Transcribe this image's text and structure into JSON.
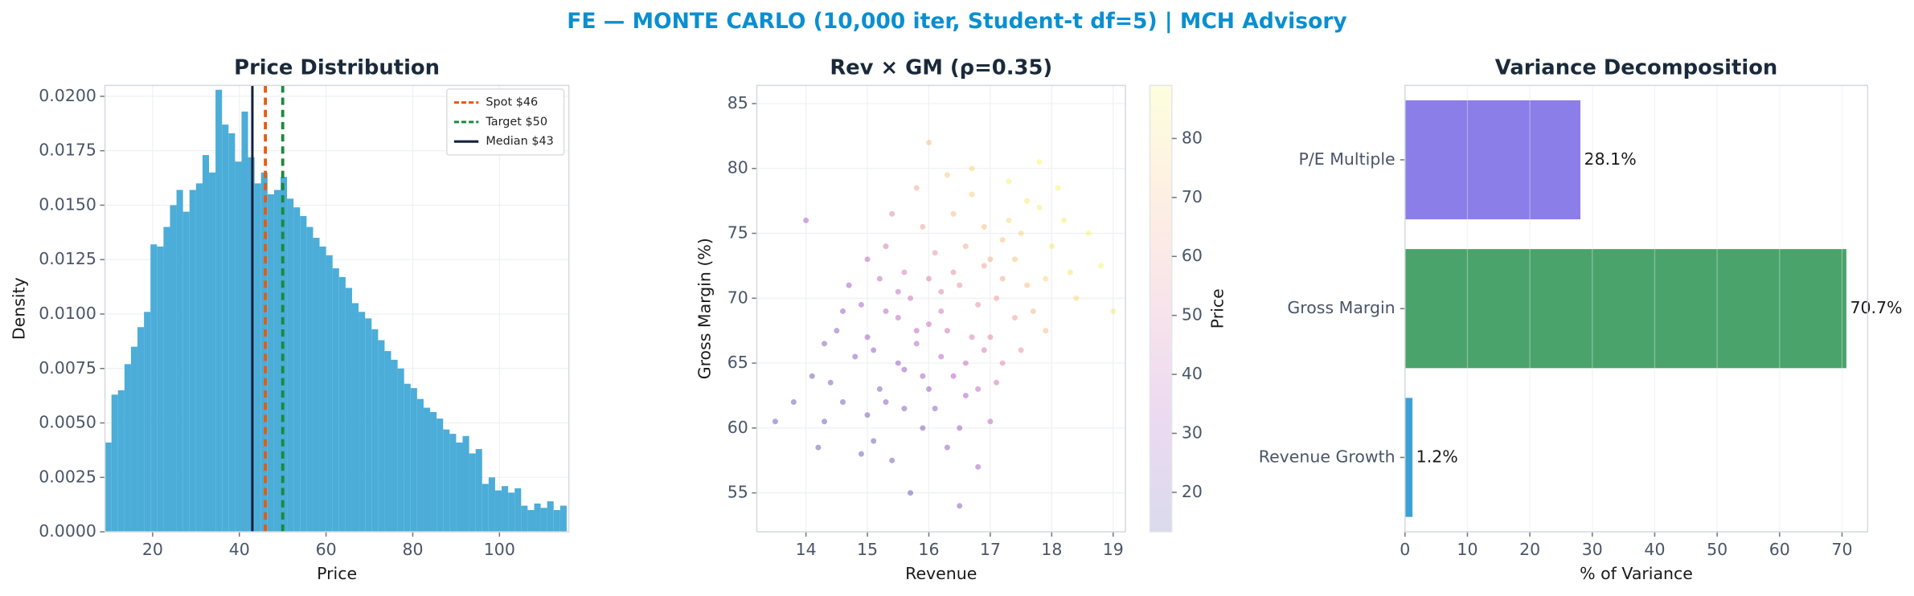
{
  "figure_title": "FE — MONTE CARLO (10,000 iter, Student-t df=5) | MCH Advisory",
  "chart_data": [
    {
      "type": "histogram",
      "title": "Price Distribution",
      "xlabel": "Price",
      "ylabel": "Density",
      "color": "#4badd8",
      "bins": [
        9,
        10.5,
        12,
        13.5,
        15,
        16.5,
        18,
        19.5,
        21,
        22.5,
        24,
        25.5,
        27,
        28.5,
        30,
        31.5,
        33,
        34.5,
        36,
        37.5,
        39,
        40.5,
        42,
        43.5,
        45,
        46.5,
        48,
        49.5,
        51,
        52.5,
        54,
        55.5,
        57,
        58.5,
        60,
        61.5,
        63,
        64.5,
        66,
        67.5,
        69,
        70.5,
        72,
        73.5,
        75,
        76.5,
        78,
        79.5,
        81,
        82.5,
        84,
        85.5,
        87,
        88.5,
        90,
        91.5,
        93,
        94.5,
        96,
        97.5,
        99,
        100.5,
        102,
        103.5,
        105,
        106.5,
        108,
        109.5,
        111,
        112.5,
        114,
        115.5
      ],
      "values": [
        0.0041,
        0.0063,
        0.0065,
        0.0077,
        0.0085,
        0.0094,
        0.0101,
        0.0132,
        0.0131,
        0.014,
        0.015,
        0.0157,
        0.0147,
        0.0157,
        0.016,
        0.0173,
        0.0165,
        0.0203,
        0.0187,
        0.0183,
        0.017,
        0.0193,
        0.0172,
        0.016,
        0.0165,
        0.0155,
        0.0157,
        0.0163,
        0.0153,
        0.0149,
        0.0145,
        0.014,
        0.0135,
        0.0131,
        0.0127,
        0.0121,
        0.0117,
        0.0112,
        0.0105,
        0.0101,
        0.0098,
        0.0093,
        0.0088,
        0.0083,
        0.0079,
        0.0075,
        0.0068,
        0.0066,
        0.0061,
        0.0057,
        0.0055,
        0.0052,
        0.0047,
        0.0045,
        0.0041,
        0.0044,
        0.0036,
        0.0038,
        0.0022,
        0.0025,
        0.0019,
        0.0021,
        0.0018,
        0.002,
        0.0012,
        0.001,
        0.0013,
        0.0011,
        0.0014,
        0.001,
        0.0012
      ],
      "xlim": [
        9,
        116
      ],
      "ylim": [
        0,
        0.0205
      ],
      "xticks": [
        20,
        40,
        60,
        80,
        100
      ],
      "yticks": [
        {
          "value": 0,
          "label": "0.0000"
        },
        {
          "value": 0.0025,
          "label": "0.0025"
        },
        {
          "value": 0.005,
          "label": "0.0050"
        },
        {
          "value": 0.0075,
          "label": "0.0075"
        },
        {
          "value": 0.01,
          "label": "0.0100"
        },
        {
          "value": 0.0125,
          "label": "0.0125"
        },
        {
          "value": 0.015,
          "label": "0.0150"
        },
        {
          "value": 0.0175,
          "label": "0.0175"
        },
        {
          "value": 0.02,
          "label": "0.0200"
        }
      ],
      "grid": true,
      "legend": "upper right",
      "lines": [
        {
          "name": "Spot $46",
          "value": 46,
          "color": "#e8590c",
          "style": "dashed"
        },
        {
          "name": "Target $50",
          "value": 50,
          "color": "#1a8a3a",
          "style": "dashed"
        },
        {
          "name": "Median $43",
          "value": 43,
          "color": "#14213d",
          "style": "solid"
        }
      ]
    },
    {
      "type": "scatter",
      "title": "Rev × GM (ρ=0.35)",
      "xlabel": "Revenue",
      "ylabel": "Gross Margin (%)",
      "colormap": "plasma",
      "alpha": 0.35,
      "x": [
        16.0,
        15.5,
        16.5,
        17.0,
        15.2,
        16.8,
        15.8,
        17.5,
        14.6,
        16.2,
        15.0,
        17.2,
        16.4,
        15.6,
        18.0,
        14.3,
        16.9,
        15.3,
        17.8,
        16.1,
        15.9,
        14.8,
        17.4,
        16.6,
        15.1,
        16.3,
        18.3,
        14.1,
        17.1,
        15.7,
        16.7,
        15.4,
        17.6,
        14.9,
        16.0,
        17.3,
        15.5,
        16.5,
        18.6,
        13.8,
        16.9,
        15.2,
        17.0,
        16.2,
        15.8,
        14.5,
        17.7,
        16.4,
        15.0,
        16.6,
        18.1,
        14.2,
        17.2,
        15.6,
        16.8,
        15.3,
        17.9,
        14.7,
        16.3,
        15.9,
        17.5,
        16.1,
        14.4,
        18.4,
        15.1,
        16.7,
        17.3,
        15.7,
        16.0,
        18.8,
        13.5,
        14.0,
        19.0,
        16.5,
        17.8,
        15.4,
        17.0,
        14.9,
        16.9,
        15.5,
        16.2,
        17.4,
        16.6,
        15.8,
        16.0,
        15.3,
        17.1,
        16.4,
        14.6,
        18.2,
        15.9,
        16.8,
        17.6,
        15.0,
        16.3,
        17.9,
        14.3,
        16.7,
        15.6,
        17.2
      ],
      "y": [
        68.0,
        65.0,
        71.0,
        73.0,
        63.0,
        69.5,
        66.5,
        75.0,
        62.0,
        70.5,
        67.0,
        71.5,
        64.0,
        72.0,
        74.0,
        60.5,
        66.0,
        69.0,
        77.0,
        61.5,
        75.5,
        65.5,
        68.5,
        74.0,
        59.0,
        67.5,
        72.0,
        64.0,
        63.5,
        70.0,
        78.0,
        57.5,
        71.0,
        69.5,
        63.0,
        76.0,
        68.5,
        60.0,
        75.0,
        62.0,
        72.5,
        71.5,
        67.0,
        65.5,
        78.5,
        67.5,
        69.0,
        76.5,
        61.0,
        62.5,
        78.5,
        58.5,
        74.5,
        64.5,
        57.0,
        74.0,
        71.5,
        71.0,
        79.5,
        60.0,
        66.0,
        73.5,
        63.5,
        70.0,
        66.0,
        67.0,
        79.0,
        55.0,
        82.0,
        72.5,
        60.5,
        76.0,
        69.0,
        54.0,
        80.5,
        76.5,
        60.5,
        58.0,
        75.5,
        70.5,
        69.0,
        73.0,
        65.0,
        67.5,
        71.5,
        62.0,
        70.0,
        72.0,
        69.0,
        76.0,
        64.0,
        63.0,
        77.5,
        73.0,
        58.5,
        67.5,
        66.5,
        80.0,
        61.5,
        65.0
      ],
      "color_values": [
        42,
        28,
        56,
        66,
        22,
        54,
        35,
        78,
        18,
        50,
        30,
        64,
        34,
        48,
        84,
        16,
        46,
        36,
        86,
        26,
        62,
        24,
        60,
        65,
        17,
        43,
        82,
        19,
        44,
        44,
        76,
        18,
        70,
        33,
        28,
        80,
        37,
        28,
        88,
        16,
        62,
        40,
        52,
        36,
        64,
        25,
        68,
        70,
        20,
        34,
        88,
        15,
        72,
        28,
        30,
        46,
        78,
        30,
        74,
        22,
        56,
        56,
        20,
        80,
        27,
        48,
        86,
        16,
        72,
        88,
        15,
        34,
        84,
        22,
        88,
        52,
        38,
        17,
        70,
        40,
        45,
        72,
        40,
        38,
        50,
        22,
        60,
        55,
        28,
        86,
        30,
        38,
        84,
        38,
        24,
        70,
        22,
        78,
        22,
        52
      ],
      "xlim": [
        13.2,
        19.2
      ],
      "ylim": [
        52,
        86.4
      ],
      "xticks": [
        14,
        15,
        16,
        17,
        18,
        19
      ],
      "yticks": [
        55,
        60,
        65,
        70,
        75,
        80,
        85
      ],
      "grid": true,
      "colorbar": {
        "label": "Price",
        "lim": [
          13.3,
          89.0
        ],
        "ticks": [
          20,
          30,
          40,
          50,
          60,
          70,
          80
        ],
        "alpha": 0.15
      }
    },
    {
      "type": "barh",
      "title": "Variance Decomposition",
      "xlabel": "% of Variance",
      "categories": [
        "Revenue Growth",
        "Gross Margin",
        "P/E Multiple"
      ],
      "values": [
        1.2,
        70.7,
        28.1
      ],
      "value_labels": [
        "1.2%",
        "70.7%",
        "28.1%"
      ],
      "colors": [
        "#3aa3d4",
        "#4aa36b",
        "#8b7ee8"
      ],
      "xlim": [
        0,
        74.1
      ],
      "xticks": [
        0,
        10,
        20,
        30,
        40,
        50,
        60,
        70
      ],
      "grid": true
    }
  ]
}
